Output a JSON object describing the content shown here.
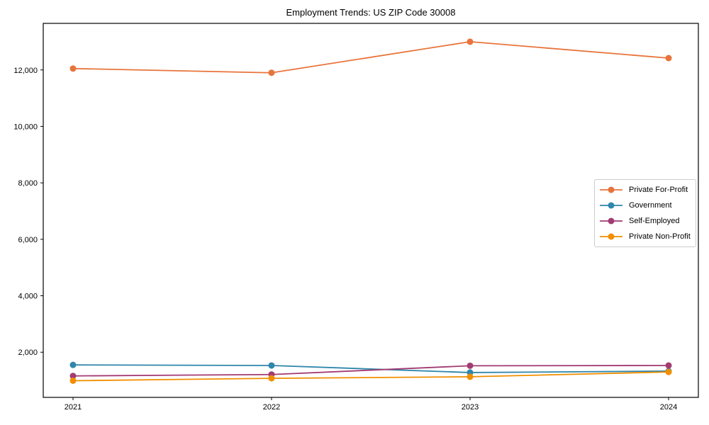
{
  "chart_data": {
    "type": "line",
    "title": "Employment Trends: US ZIP Code 30008",
    "x": [
      "2021",
      "2022",
      "2023",
      "2024"
    ],
    "series": [
      {
        "name": "Private For-Profit",
        "color": "#E8743B",
        "values": [
          12050,
          11900,
          13000,
          12420
        ]
      },
      {
        "name": "Government",
        "color": "#2E86AB",
        "values": [
          1550,
          1530,
          1280,
          1330
        ]
      },
      {
        "name": "Self-Employed",
        "color": "#A23B72",
        "values": [
          1160,
          1210,
          1520,
          1530
        ]
      },
      {
        "name": "Private Non-Profit",
        "color": "#F18F01",
        "values": [
          990,
          1075,
          1130,
          1300
        ]
      }
    ],
    "yticks": [
      2000,
      4000,
      6000,
      8000,
      10000,
      12000
    ],
    "ytick_labels": [
      "2,000",
      "4,000",
      "6,000",
      "8,000",
      "10,000",
      "12,000"
    ],
    "ylim": [
      400,
      13650
    ],
    "xlim": [
      -0.15,
      3.15
    ],
    "grid": false,
    "legend_position": "center right",
    "marker": "circle",
    "frame_color": "#000000",
    "background_color": "#ffffff"
  }
}
